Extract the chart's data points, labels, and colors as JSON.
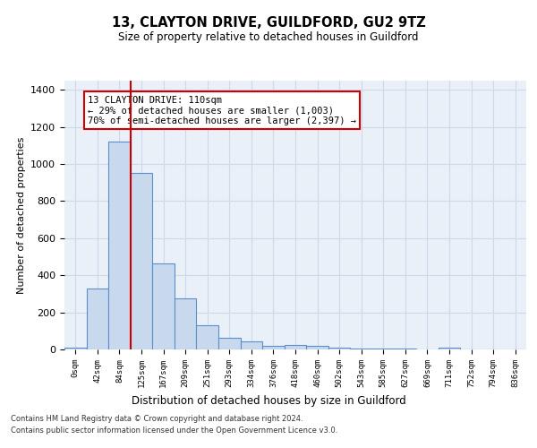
{
  "title1": "13, CLAYTON DRIVE, GUILDFORD, GU2 9TZ",
  "title2": "Size of property relative to detached houses in Guildford",
  "xlabel": "Distribution of detached houses by size in Guildford",
  "ylabel": "Number of detached properties",
  "categories": [
    "0sqm",
    "42sqm",
    "84sqm",
    "125sqm",
    "167sqm",
    "209sqm",
    "251sqm",
    "293sqm",
    "334sqm",
    "376sqm",
    "418sqm",
    "460sqm",
    "502sqm",
    "543sqm",
    "585sqm",
    "627sqm",
    "669sqm",
    "711sqm",
    "752sqm",
    "794sqm",
    "836sqm"
  ],
  "values": [
    8,
    330,
    1120,
    950,
    465,
    275,
    130,
    65,
    45,
    18,
    25,
    18,
    10,
    5,
    5,
    5,
    0,
    12,
    0,
    0,
    0
  ],
  "bar_color": "#c8d9ee",
  "bar_edge_color": "#5b8fc9",
  "vline_x_index": 2.5,
  "vline_color": "#cc0000",
  "annotation_text": "13 CLAYTON DRIVE: 110sqm\n← 29% of detached houses are smaller (1,003)\n70% of semi-detached houses are larger (2,397) →",
  "annotation_box_color": "#ffffff",
  "annotation_box_edge_color": "#cc0000",
  "ylim": [
    0,
    1450
  ],
  "yticks": [
    0,
    200,
    400,
    600,
    800,
    1000,
    1200,
    1400
  ],
  "grid_color": "#d0d8e8",
  "bg_color": "#eaf0f8",
  "footnote1": "Contains HM Land Registry data © Crown copyright and database right 2024.",
  "footnote2": "Contains public sector information licensed under the Open Government Licence v3.0."
}
